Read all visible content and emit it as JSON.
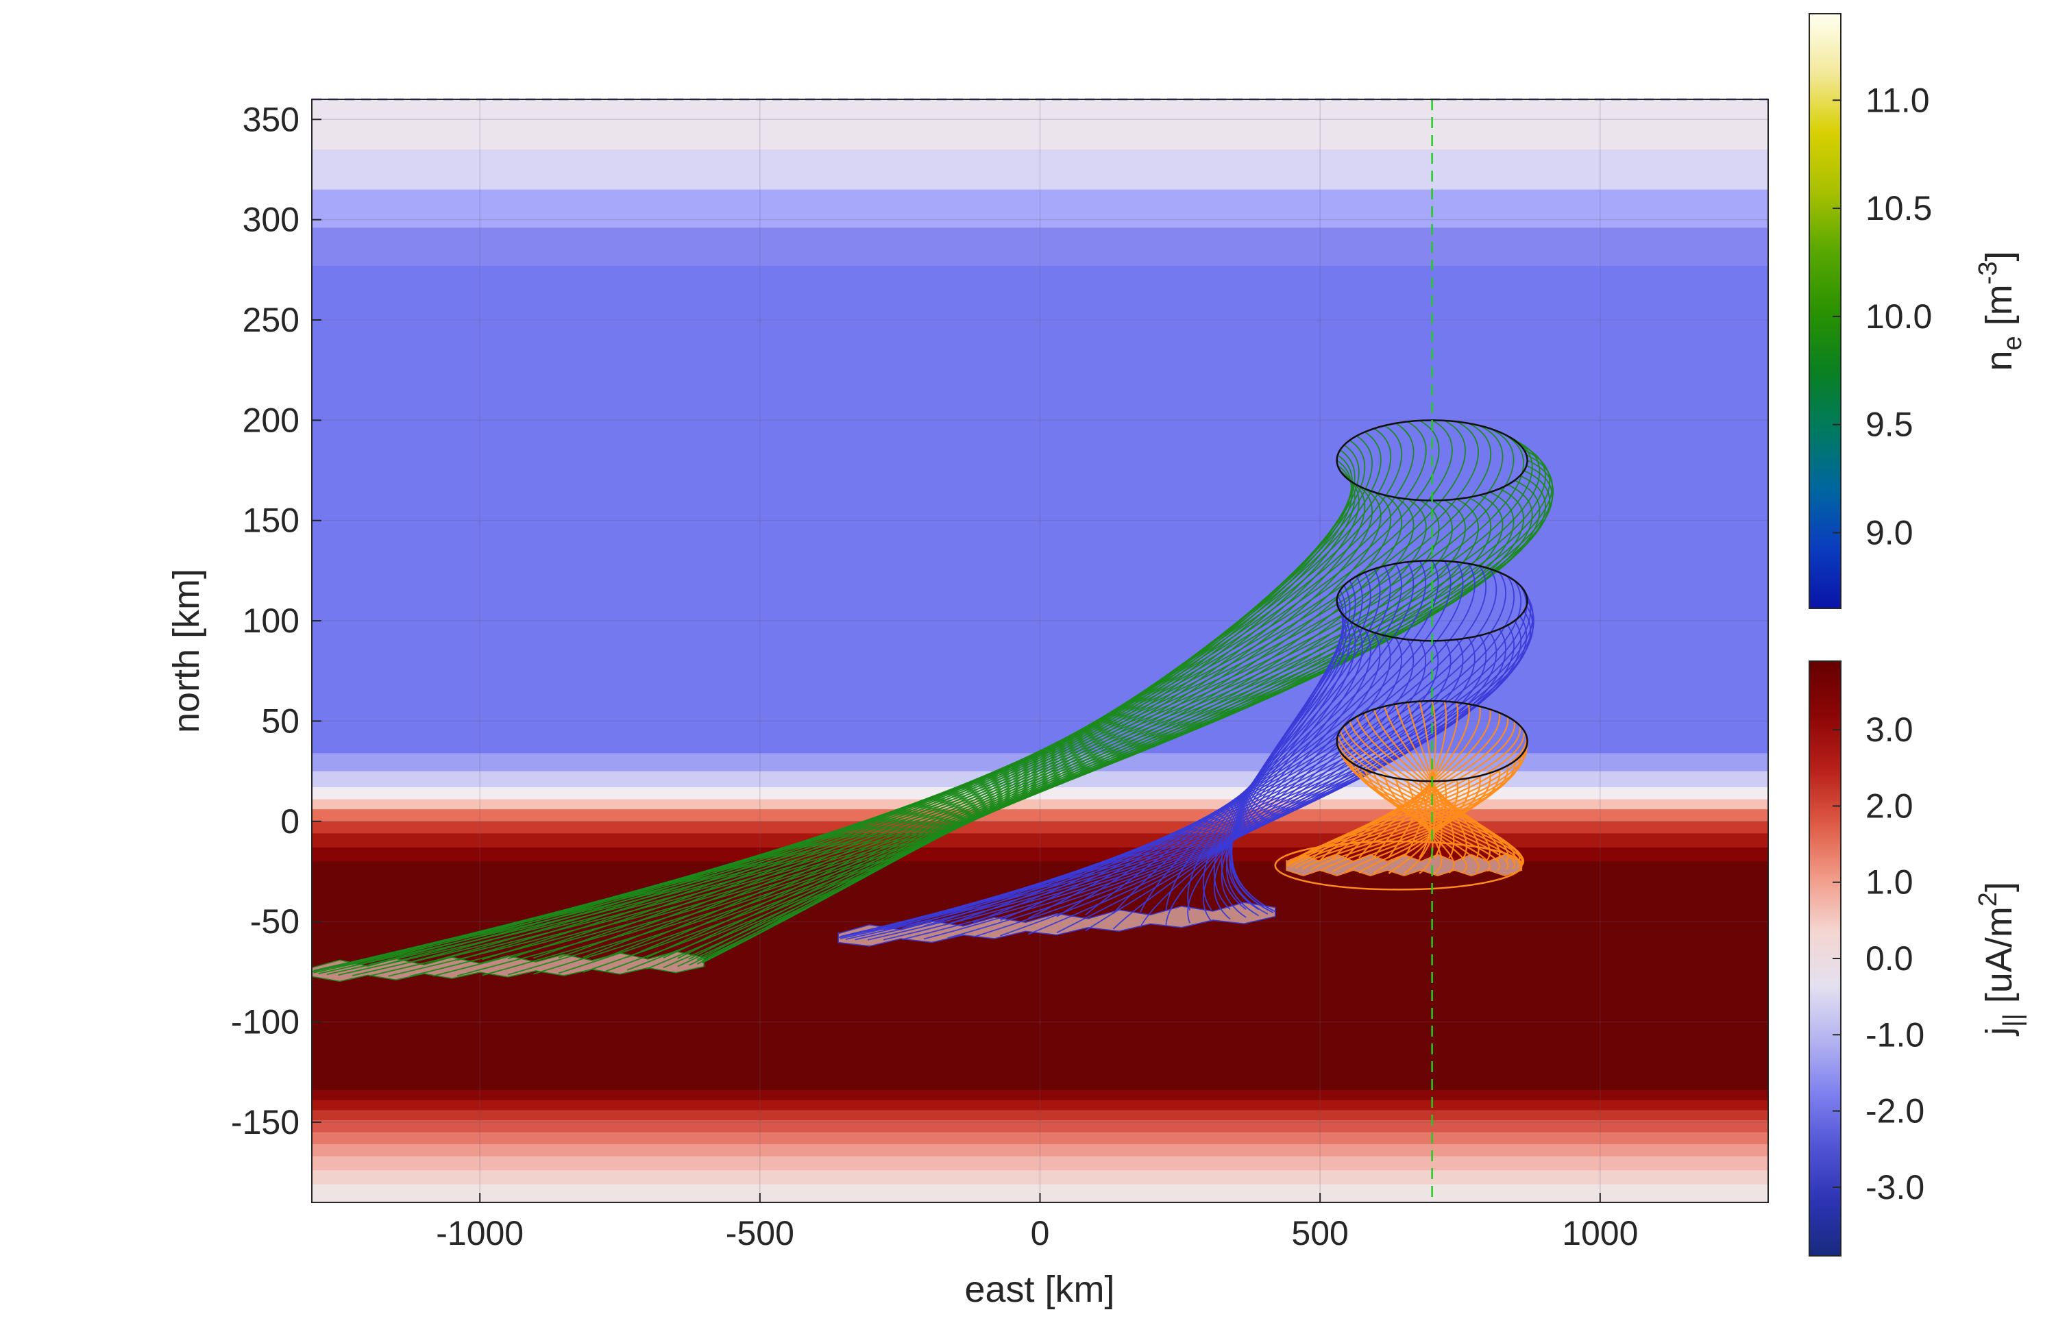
{
  "chart_data": {
    "type": "heatmap",
    "xlabel": "east [km]",
    "ylabel": "north [km]",
    "xlim": [
      -1300,
      1300
    ],
    "ylim": [
      -190,
      360
    ],
    "xticks": [
      -1000,
      -500,
      0,
      500,
      1000
    ],
    "xtick_labels": [
      "-1000",
      "-500",
      "0",
      "500",
      "1000"
    ],
    "yticks": [
      350,
      300,
      250,
      200,
      150,
      100,
      50,
      0,
      -50,
      -100,
      -150
    ],
    "ytick_labels": [
      "350",
      "300",
      "250",
      "200",
      "150",
      "100",
      "50",
      "0",
      "-50",
      "-100",
      "-150"
    ],
    "grid": true,
    "reference_line_x": 700,
    "colorbars": [
      {
        "name": "n_e",
        "label_main": "n",
        "label_sub": "e",
        "label_unit_pre": " [m",
        "label_unit_sup": "-3",
        "label_unit_post": "]",
        "range": [
          8.65,
          11.4
        ],
        "ticks": [
          11.0,
          10.5,
          10.0,
          9.5,
          9.0
        ],
        "tick_labels": [
          "11.0",
          "10.5",
          "10.0",
          "9.5",
          "9.0"
        ],
        "colors": [
          "#fffff0",
          "#f3e89a",
          "#d8d000",
          "#a8c000",
          "#58a800",
          "#2a9200",
          "#0a8020",
          "#007a60",
          "#0066a0",
          "#0a3cbf",
          "#0a14a8"
        ]
      },
      {
        "name": "j_par",
        "label_main": "j",
        "label_sub": "||",
        "label_unit_pre": " [uA/m",
        "label_unit_sup": "2",
        "label_unit_post": "]",
        "range": [
          -3.9,
          3.9
        ],
        "ticks": [
          3.0,
          2.0,
          1.0,
          0.0,
          -1.0,
          -2.0,
          -3.0
        ],
        "tick_labels": [
          "3.0",
          "2.0",
          "1.0",
          "0.0",
          "-1.0",
          "-2.0",
          "-3.0"
        ],
        "colors": [
          "#650000",
          "#8c0606",
          "#b8201a",
          "#de5a44",
          "#f29a88",
          "#f4d6d0",
          "#e4e0f0",
          "#b4b4f0",
          "#7e80ee",
          "#5054d4",
          "#2c34b4",
          "#182a7e"
        ]
      }
    ],
    "background_bands": [
      {
        "y_top": 360,
        "y_bottom": 335,
        "color": "#ebe4ec"
      },
      {
        "y_top": 335,
        "y_bottom": 315,
        "color": "#d8d6f4"
      },
      {
        "y_top": 315,
        "y_bottom": 296,
        "color": "#a8a8fa"
      },
      {
        "y_top": 296,
        "y_bottom": 277,
        "color": "#8686f0"
      },
      {
        "y_top": 277,
        "y_bottom": 34,
        "color": "#7479ef"
      },
      {
        "y_top": 34,
        "y_bottom": 25,
        "color": "#9ea0f4"
      },
      {
        "y_top": 25,
        "y_bottom": 17,
        "color": "#cdccf4"
      },
      {
        "y_top": 17,
        "y_bottom": 11,
        "color": "#f2ecf0"
      },
      {
        "y_top": 11,
        "y_bottom": 6,
        "color": "#f6c2b6"
      },
      {
        "y_top": 6,
        "y_bottom": 0,
        "color": "#e8705a"
      },
      {
        "y_top": 0,
        "y_bottom": -6,
        "color": "#cc3a2c"
      },
      {
        "y_top": -6,
        "y_bottom": -13,
        "color": "#a81610"
      },
      {
        "y_top": -13,
        "y_bottom": -20,
        "color": "#880404"
      },
      {
        "y_top": -20,
        "y_bottom": -134,
        "color": "#6a0404"
      },
      {
        "y_top": -134,
        "y_bottom": -139,
        "color": "#880606"
      },
      {
        "y_top": -139,
        "y_bottom": -144,
        "color": "#a8140e"
      },
      {
        "y_top": -144,
        "y_bottom": -149,
        "color": "#c4352a"
      },
      {
        "y_top": -149,
        "y_bottom": -155,
        "color": "#d8574a"
      },
      {
        "y_top": -155,
        "y_bottom": -161,
        "color": "#e6786a"
      },
      {
        "y_top": -161,
        "y_bottom": -167,
        "color": "#ee9a8e"
      },
      {
        "y_top": -167,
        "y_bottom": -174,
        "color": "#f2b8b0"
      },
      {
        "y_top": -174,
        "y_bottom": -181,
        "color": "#f2d2cc"
      },
      {
        "y_top": -181,
        "y_bottom": -190,
        "color": "#eee4e4"
      }
    ],
    "flux_tubes": [
      {
        "name": "green",
        "color": "#1a8a1a",
        "top_ellipse": {
          "cx": 700,
          "cy": 180,
          "rx": 170,
          "ry": 20
        },
        "foot_x": [
          -1300,
          -600
        ],
        "foot_y": [
          -75,
          -70
        ],
        "footprint_color": "#c89088"
      },
      {
        "name": "blue",
        "color": "#3a3ad8",
        "top_ellipse": {
          "cx": 700,
          "cy": 110,
          "rx": 170,
          "ry": 20
        },
        "foot_x": [
          -360,
          420
        ],
        "foot_y": [
          -58,
          -45
        ],
        "footprint_color": "#c89088"
      },
      {
        "name": "orange",
        "color": "#ff8c1a",
        "top_ellipse": {
          "cx": 700,
          "cy": 40,
          "rx": 170,
          "ry": 20
        },
        "foot_x": [
          440,
          860
        ],
        "foot_y": [
          -22,
          -22
        ],
        "footprint_color": "#c89088"
      }
    ]
  }
}
